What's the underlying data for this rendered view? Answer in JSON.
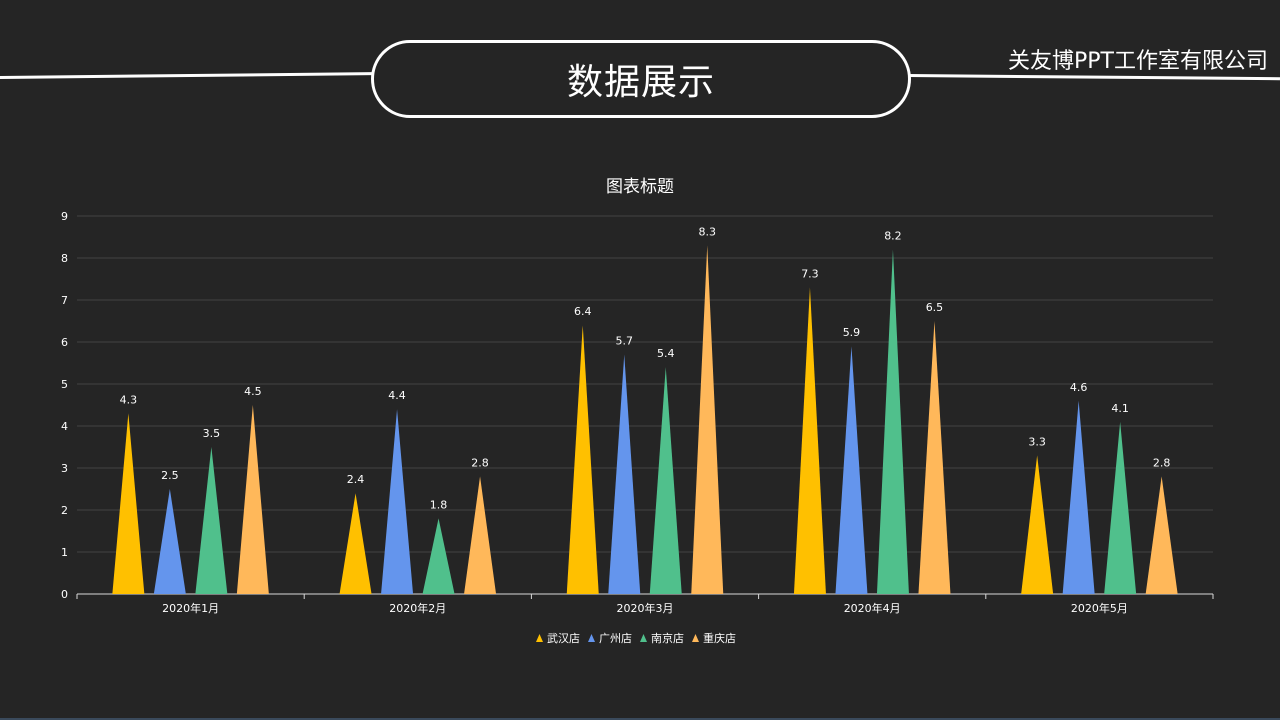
{
  "slide": {
    "title": "数据展示",
    "company": "关友博PPT工作室有限公司"
  },
  "chart_data": {
    "type": "bar",
    "title": "图表标题",
    "xlabel": "",
    "ylabel": "",
    "ylim": [
      0,
      9
    ],
    "yticks": [
      "0",
      "1",
      "2",
      "3",
      "4",
      "5",
      "6",
      "7",
      "8",
      "9"
    ],
    "categories": [
      "2020年1月",
      "2020年2月",
      "2020年3月",
      "2020年4月",
      "2020年5月"
    ],
    "series": [
      {
        "name": "武汉店",
        "color": "#ffc000",
        "values": [
          4.3,
          2.4,
          6.4,
          7.3,
          3.3
        ]
      },
      {
        "name": "广州店",
        "color": "#6495ed",
        "values": [
          2.5,
          4.4,
          5.7,
          5.9,
          4.6
        ]
      },
      {
        "name": "南京店",
        "color": "#50c08c",
        "values": [
          3.5,
          1.8,
          5.4,
          8.2,
          4.1
        ]
      },
      {
        "name": "重庆店",
        "color": "#ffb85a",
        "values": [
          4.5,
          2.8,
          8.3,
          6.5,
          2.8
        ]
      }
    ],
    "grid": true,
    "legend_position": "bottom",
    "bar_shape": "triangle-spike",
    "data_labels": true
  }
}
